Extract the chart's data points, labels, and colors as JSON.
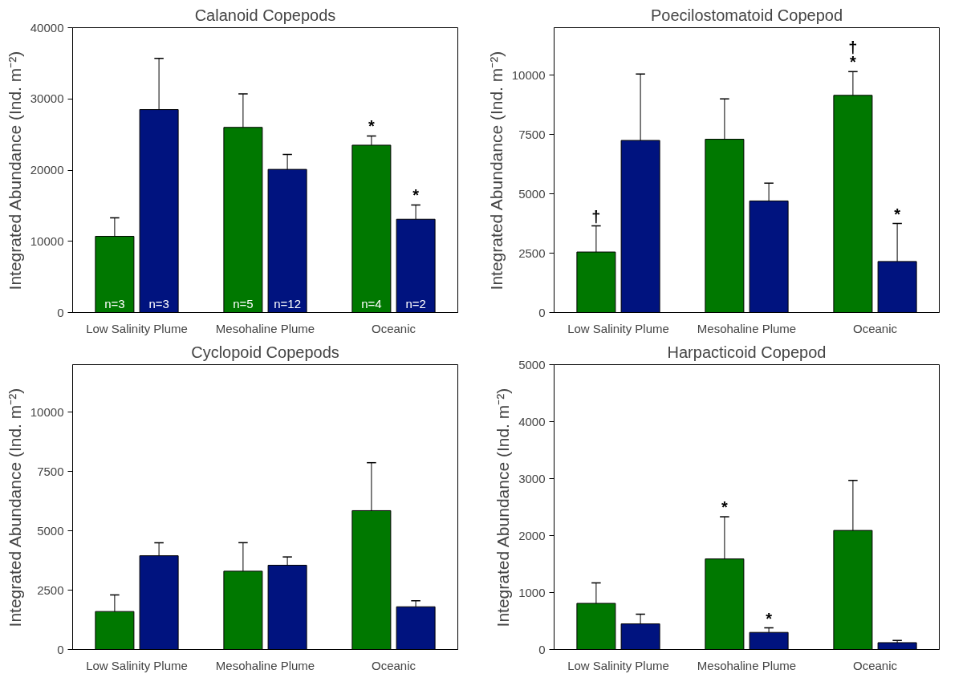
{
  "chart_data": [
    {
      "type": "bar",
      "title": "Calanoid Copepods",
      "ylabel": "Integrated Abundance (Ind. m⁻²)",
      "categories": [
        "Low Salinity Plume",
        "Mesohaline Plume",
        "Oceanic"
      ],
      "ylim": [
        0,
        40000
      ],
      "yticks": [
        0,
        10000,
        20000,
        30000,
        40000
      ],
      "series": [
        {
          "color": "#007800",
          "values": [
            10700,
            26000,
            23500
          ],
          "errors": [
            [
              10700,
              13300
            ],
            [
              26000,
              30700
            ],
            [
              23500,
              24800
            ]
          ]
        },
        {
          "color": "#00137f",
          "values": [
            28500,
            20100,
            13100
          ],
          "errors": [
            [
              28500,
              35700
            ],
            [
              20100,
              22200
            ],
            [
              13100,
              15100
            ]
          ]
        }
      ],
      "annotations": [
        {
          "text": "*",
          "x": "Oceanic",
          "y": 23500
        },
        {
          "text": "*",
          "x": "Oceanic",
          "y": 13100
        },
        {
          "text": "n=3",
          "x": "Low Salinity Plume",
          "y": 0
        },
        {
          "text": "n=3",
          "x": "Low Salinity Plume",
          "y": 0
        },
        {
          "text": "n=5",
          "x": "Mesohaline Plume",
          "y": 0
        },
        {
          "text": "n=12",
          "x": "Mesohaline Plume",
          "y": 0
        },
        {
          "text": "n=4",
          "x": "Oceanic",
          "y": 0
        },
        {
          "text": "n=2",
          "x": "Oceanic",
          "y": 0
        }
      ]
    },
    {
      "type": "bar",
      "title": "Poecilostomatoid Copepod",
      "ylabel": "Integrated Abundance (Ind. m⁻²)",
      "categories": [
        "Low Salinity Plume",
        "Mesohaline Plume",
        "Oceanic"
      ],
      "ylim": [
        0,
        12000
      ],
      "yticks": [
        0,
        2500,
        5000,
        7500,
        10000
      ],
      "series": [
        {
          "color": "#007800",
          "values": [
            2550,
            7300,
            9150
          ],
          "errors": [
            [
              2550,
              3650
            ],
            [
              7300,
              9000
            ],
            [
              9150,
              10150
            ]
          ]
        },
        {
          "color": "#00137f",
          "values": [
            7250,
            4700,
            2150
          ],
          "errors": [
            [
              7250,
              10050
            ],
            [
              4700,
              5450
            ],
            [
              2150,
              3750
            ]
          ]
        }
      ],
      "annotations": [
        {
          "text": "†",
          "x": "Low Salinity Plume",
          "y": 2550
        },
        {
          "text": "*",
          "x": "Oceanic",
          "y": 9150
        },
        {
          "text": "†",
          "x": "Oceanic",
          "y": 9150
        },
        {
          "text": "*",
          "x": "Oceanic",
          "y": 2150
        }
      ]
    },
    {
      "type": "bar",
      "title": "Cyclopoid Copepods",
      "ylabel": "Integrated Abundance (Ind. m⁻²)",
      "categories": [
        "Low Salinity Plume",
        "Mesohaline Plume",
        "Oceanic"
      ],
      "ylim": [
        0,
        12000
      ],
      "yticks": [
        0,
        2500,
        5000,
        7500,
        10000
      ],
      "series": [
        {
          "color": "#007800",
          "values": [
            1600,
            3300,
            5850
          ],
          "errors": [
            [
              1600,
              2300
            ],
            [
              3300,
              4500
            ],
            [
              5850,
              7870
            ]
          ]
        },
        {
          "color": "#00137f",
          "values": [
            3950,
            3550,
            1800
          ],
          "errors": [
            [
              3950,
              4500
            ],
            [
              3550,
              3900
            ],
            [
              1800,
              2050
            ]
          ]
        }
      ]
    },
    {
      "type": "bar",
      "title": "Harpacticoid Copepod",
      "ylabel": "Integrated Abundance (Ind. m⁻²)",
      "categories": [
        "Low Salinity Plume",
        "Mesohaline Plume",
        "Oceanic"
      ],
      "ylim": [
        0,
        5000
      ],
      "yticks": [
        0,
        1000,
        2000,
        3000,
        4000,
        5000
      ],
      "series": [
        {
          "color": "#007800",
          "values": [
            810,
            1590,
            2090
          ],
          "errors": [
            [
              810,
              1170
            ],
            [
              1590,
              2330
            ],
            [
              2090,
              2970
            ]
          ]
        },
        {
          "color": "#00137f",
          "values": [
            450,
            300,
            120
          ],
          "errors": [
            [
              450,
              620
            ],
            [
              300,
              380
            ],
            [
              120,
              160
            ]
          ]
        }
      ],
      "annotations": [
        {
          "text": "*",
          "x": "Mesohaline Plume",
          "y": 1590
        },
        {
          "text": "*",
          "x": "Mesohaline Plume",
          "y": 300
        }
      ]
    }
  ]
}
